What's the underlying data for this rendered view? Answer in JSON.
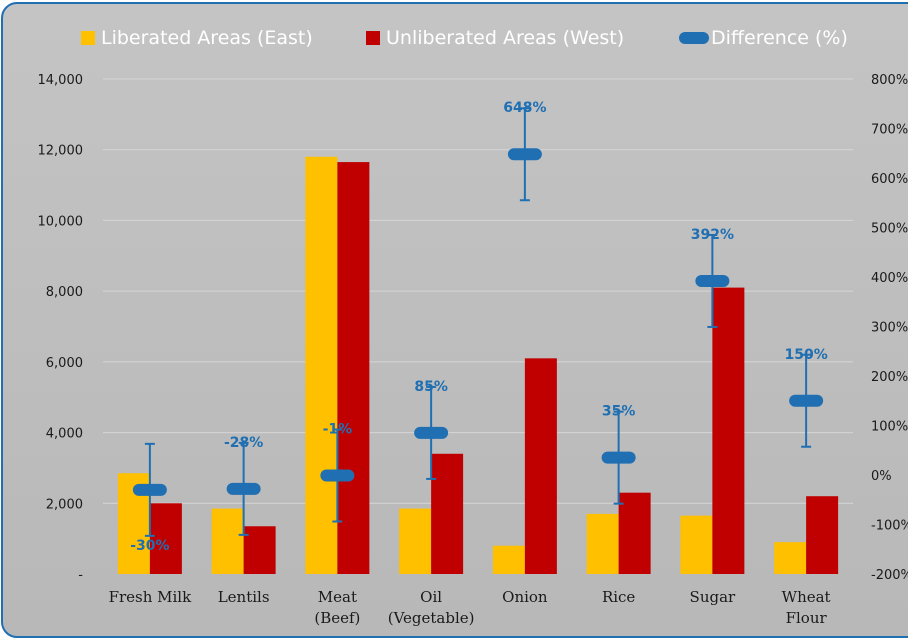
{
  "chart_data": {
    "type": "bar",
    "categories": [
      "Fresh Milk",
      "Lentils",
      "Meat (Beef)",
      "Oil (Vegetable)",
      "Onion",
      "Rice",
      "Sugar",
      "Wheat Flour"
    ],
    "category_lines": [
      [
        "Fresh Milk"
      ],
      [
        "Lentils"
      ],
      [
        "Meat",
        "(Beef)"
      ],
      [
        "Oil",
        "(Vegetable)"
      ],
      [
        "Onion"
      ],
      [
        "Rice"
      ],
      [
        "Sugar"
      ],
      [
        "Wheat",
        "Flour"
      ]
    ],
    "series": [
      {
        "name": "Liberated Areas (East)",
        "type": "bar",
        "axis": "left",
        "color": "#ffc000",
        "values": [
          2850,
          1850,
          11800,
          1850,
          800,
          1700,
          1650,
          900
        ]
      },
      {
        "name": "Unliberated Areas (West)",
        "type": "bar",
        "axis": "left",
        "color": "#c00000",
        "values": [
          2000,
          1350,
          11650,
          3400,
          6100,
          2300,
          8100,
          2200
        ]
      },
      {
        "name": "Difference (%)",
        "type": "marker",
        "axis": "right",
        "color": "#1f6fb2",
        "values": [
          -30,
          -28,
          -1,
          85,
          648,
          35,
          392,
          150
        ],
        "labels": [
          "-30%",
          "-28%",
          "-1%",
          "85%",
          "648%",
          "35%",
          "392%",
          "150%"
        ]
      }
    ],
    "y_left": {
      "ylim": [
        0,
        14000
      ],
      "ticks": [
        0,
        2000,
        4000,
        6000,
        8000,
        10000,
        12000,
        14000
      ],
      "tick_labels": [
        "-",
        "2,000",
        "4,000",
        "6,000",
        "8,000",
        "10,000",
        "12,000",
        "14,000"
      ]
    },
    "y_right": {
      "ylim": [
        -200,
        800
      ],
      "ticks": [
        -200,
        -100,
        0,
        100,
        200,
        300,
        400,
        500,
        600,
        700,
        800
      ],
      "tick_labels": [
        "-200%",
        "-100%",
        "0%",
        "100%",
        "200%",
        "300%",
        "400%",
        "500%",
        "600%",
        "700%",
        "800%"
      ]
    },
    "grid": true,
    "legend": "top"
  }
}
